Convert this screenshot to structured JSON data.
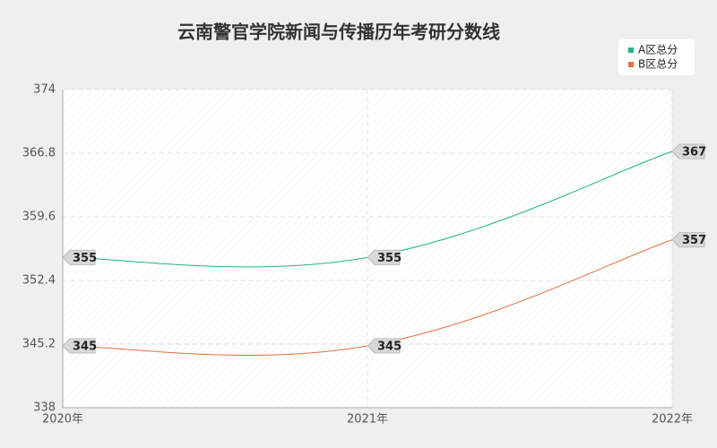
{
  "chart_data": {
    "type": "line",
    "title": "云南警官学院新闻与传播历年考研分数线",
    "categories": [
      "2020年",
      "2021年",
      "2022年"
    ],
    "series": [
      {
        "name": "A区总分",
        "color": "#20b38b",
        "values": [
          355,
          355,
          367
        ]
      },
      {
        "name": "B区总分",
        "color": "#e3703f",
        "values": [
          345,
          345,
          357
        ]
      }
    ],
    "ylim": [
      338,
      374
    ],
    "yticks": [
      338,
      345.2,
      352.4,
      359.6,
      366.8,
      374
    ],
    "grid": true,
    "legend": "top-right",
    "smooth": true
  }
}
